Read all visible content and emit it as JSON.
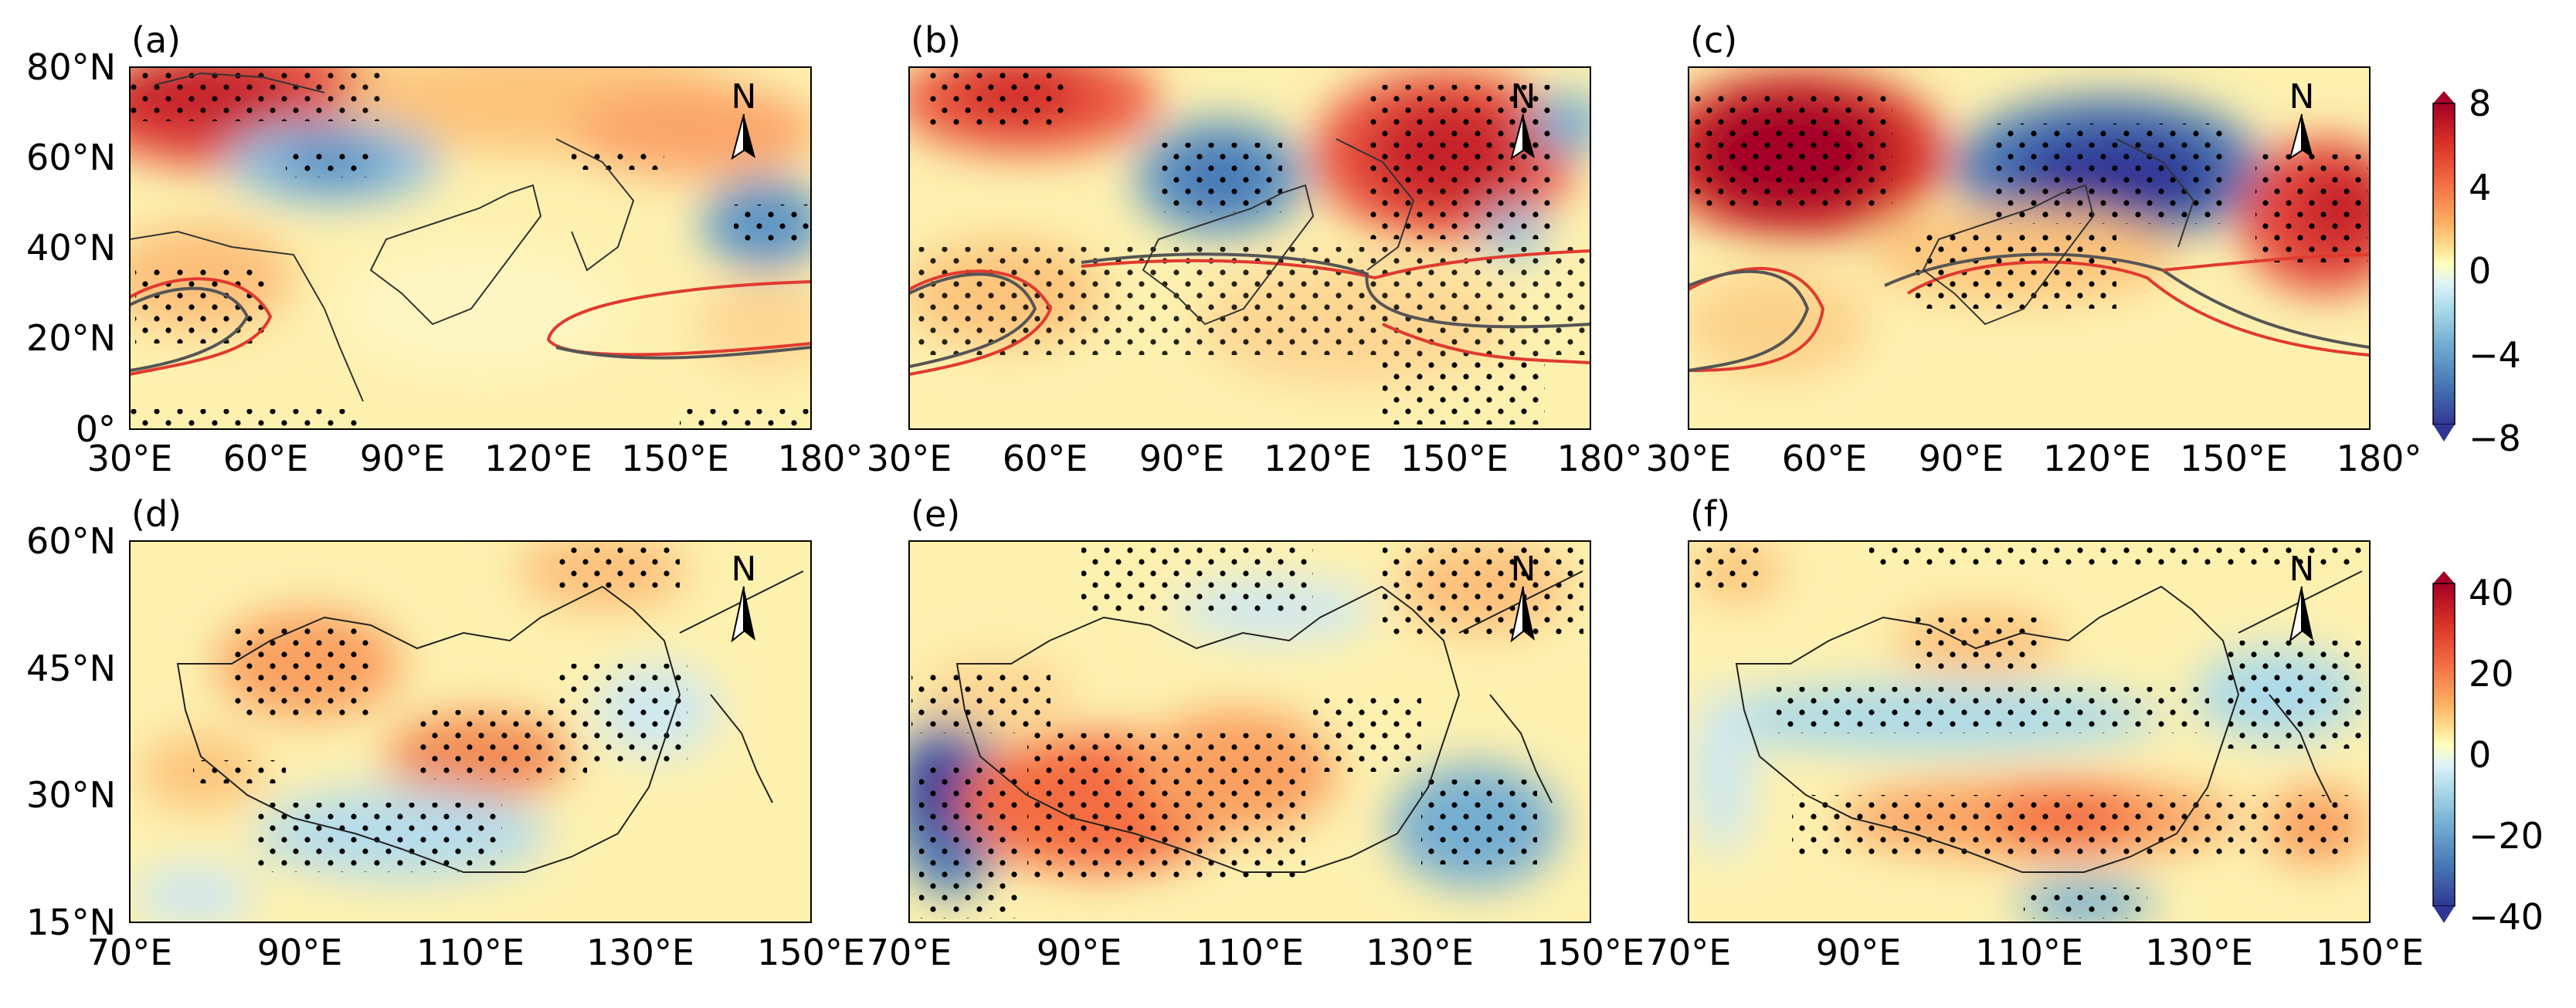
{
  "figure": {
    "top_row": {
      "panels": [
        "(a)",
        "(b)",
        "(c)"
      ],
      "lat_labels": [
        "80°N",
        "60°N",
        "40°N",
        "20°N",
        "0°"
      ],
      "lon_labels": [
        "30°E",
        "60°E",
        "90°E",
        "120°E",
        "150°E",
        "180°"
      ],
      "colorbar": {
        "ticks": [
          "8",
          "4",
          "0",
          "−4",
          "−8"
        ],
        "range": [
          -8,
          8
        ]
      }
    },
    "bottom_row": {
      "panels": [
        "(d)",
        "(e)",
        "(f)"
      ],
      "lat_labels": [
        "60°N",
        "45°N",
        "30°N",
        "15°N"
      ],
      "lon_labels": [
        "70°E",
        "90°E",
        "110°E",
        "130°E",
        "150°E"
      ],
      "colorbar": {
        "ticks": [
          "40",
          "20",
          "0",
          "−20",
          "−40"
        ],
        "range": [
          -40,
          40
        ]
      }
    },
    "north_arrow_label": "N",
    "colormap": [
      "#313695",
      "#4575b4",
      "#74add1",
      "#abd9e9",
      "#e0f3f8",
      "#ffffbf",
      "#fee090",
      "#fdae61",
      "#f46d43",
      "#d73027",
      "#a50026"
    ]
  }
}
